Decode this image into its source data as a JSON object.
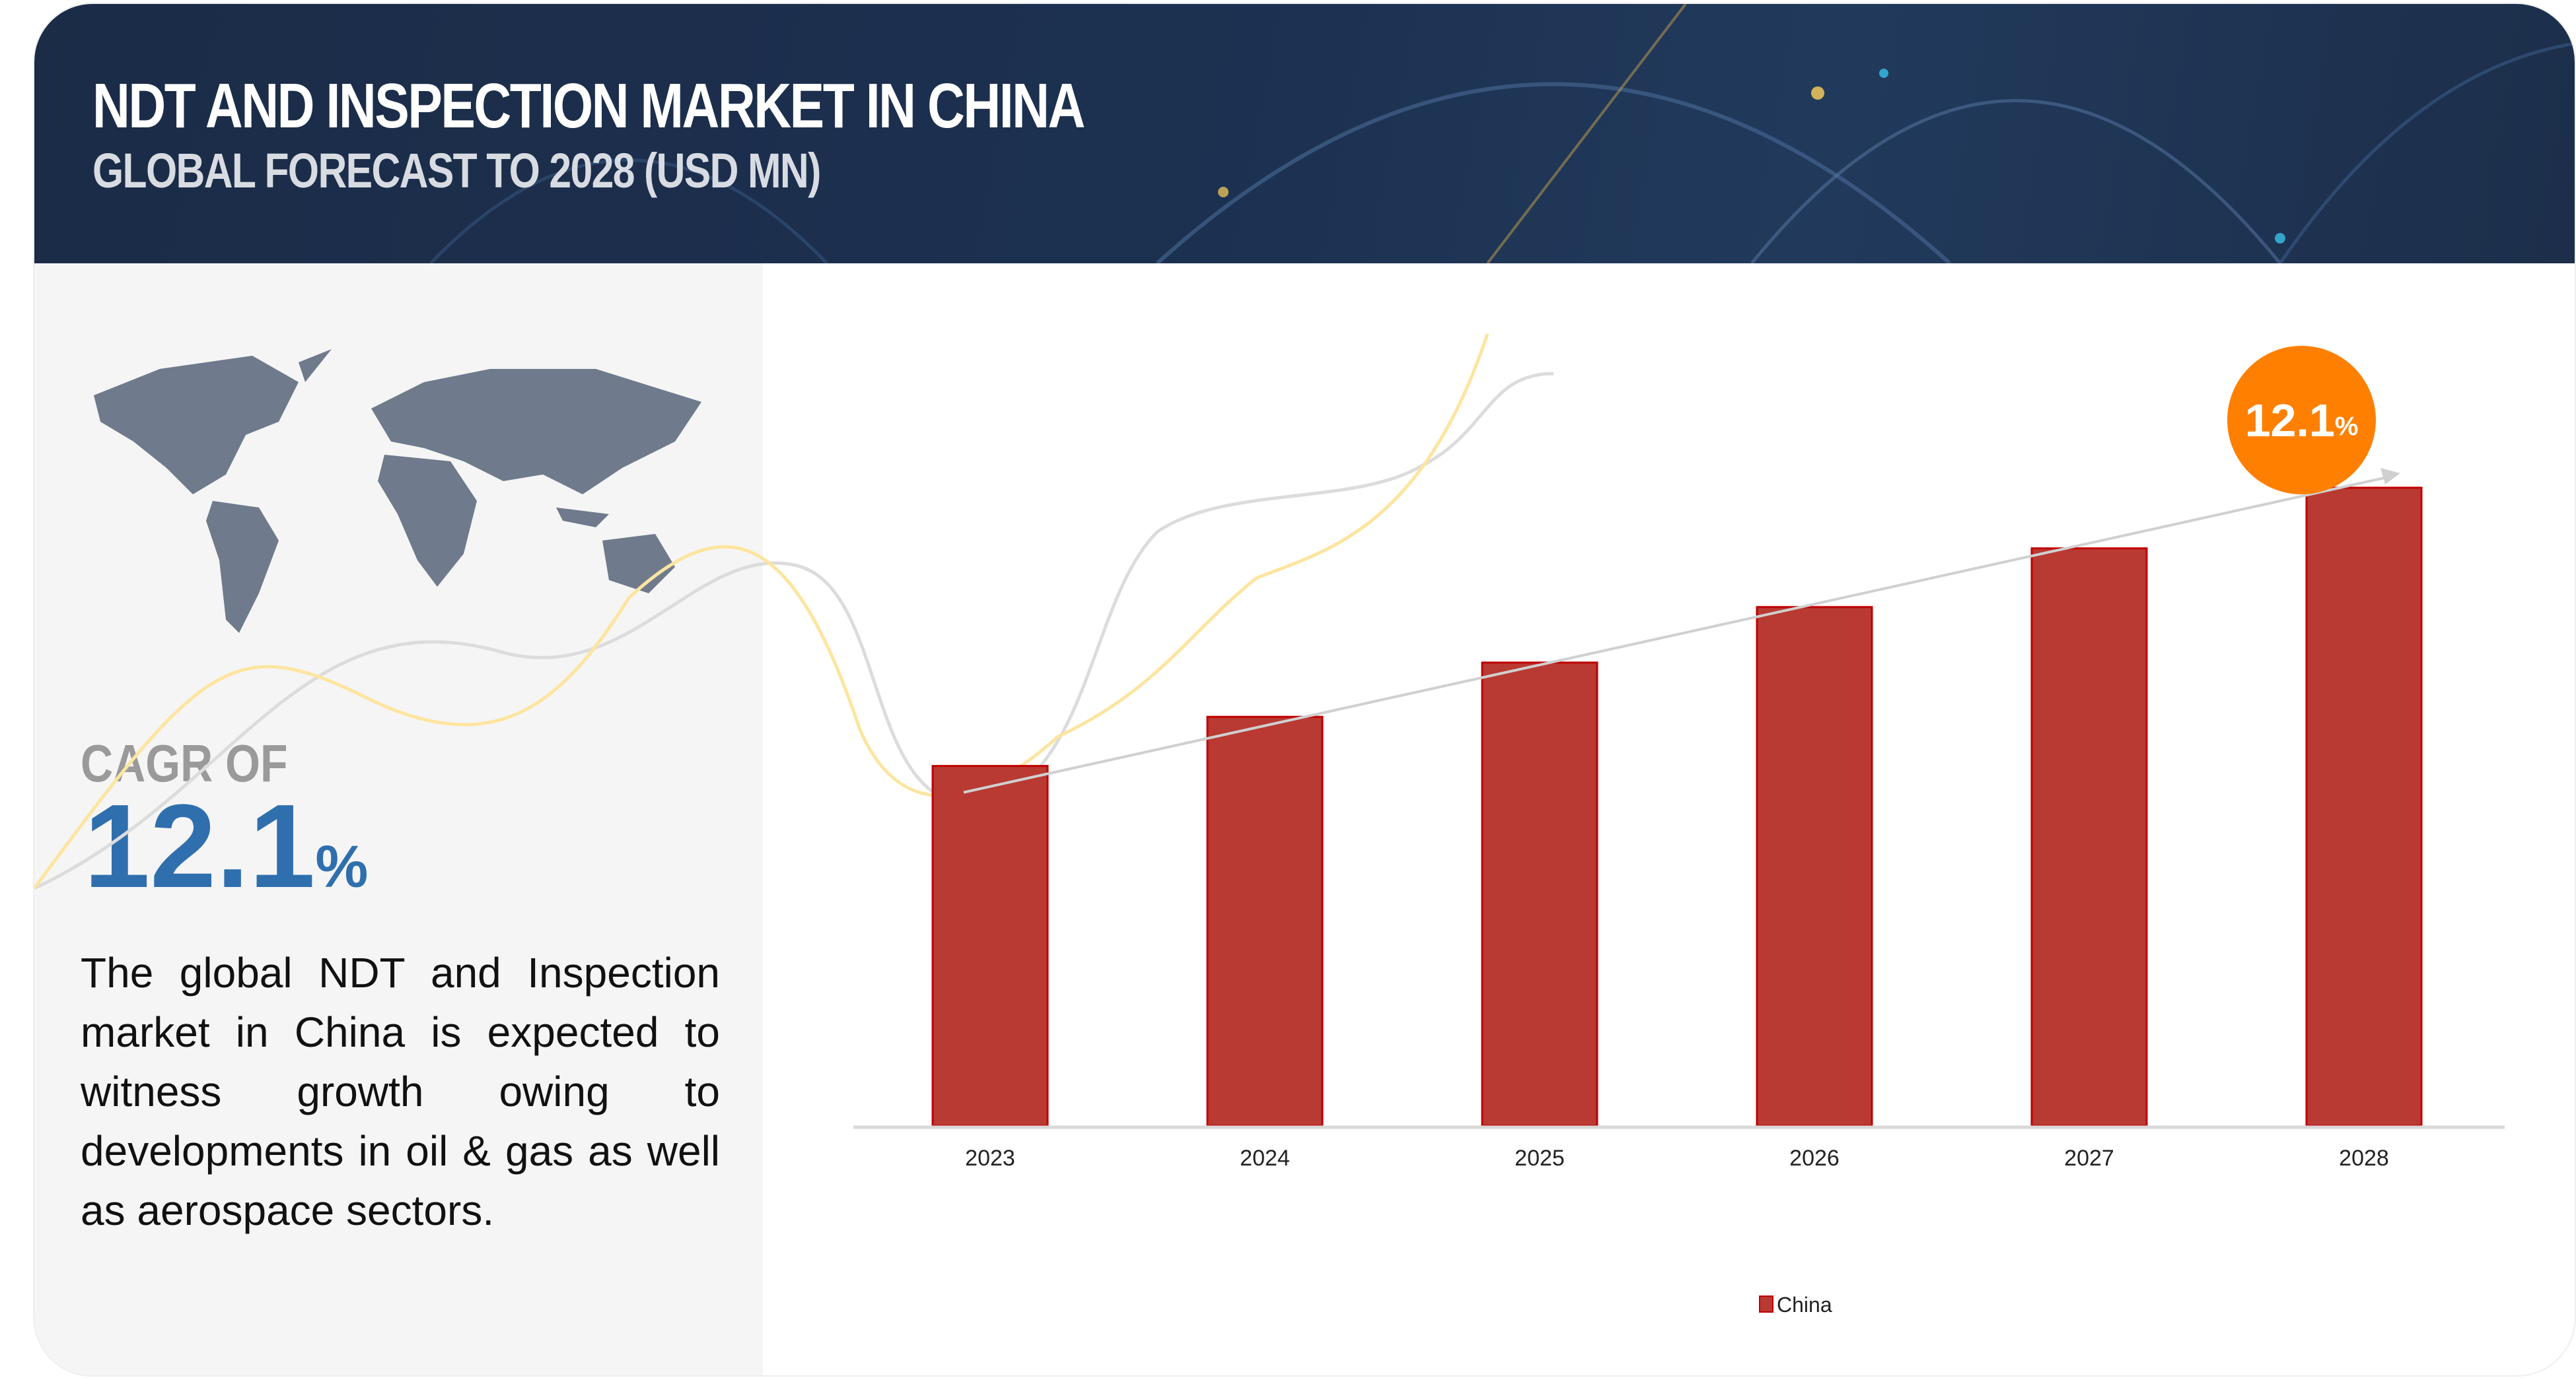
{
  "header": {
    "title": "NDT AND INSPECTION MARKET IN CHINA",
    "subtitle": "GLOBAL FORECAST TO 2028 (USD MN)"
  },
  "left_panel": {
    "cagr_label": "CAGR OF",
    "cagr_value": "12.1",
    "cagr_unit": "%",
    "description": "The global NDT and Inspection market in China is expected to witness growth owing to developments in oil & gas as well as aerospace sectors.",
    "map_icon": "world-map"
  },
  "chart_data": {
    "type": "bar",
    "title": "",
    "xlabel": "",
    "ylabel": "",
    "categories": [
      "2023",
      "2024",
      "2025",
      "2026",
      "2027",
      "2028"
    ],
    "series": [
      {
        "name": "China",
        "values": [
          56.4,
          64.1,
          72.6,
          81.3,
          90.5,
          100
        ],
        "color": "#b83a33"
      }
    ],
    "value_note_unit": "relative (2028 = 100), unlabeled",
    "ylim": [
      0,
      100
    ],
    "grid": false,
    "legend": "bottom",
    "trend_arrow": true,
    "cagr_badge": {
      "value": "12.1",
      "unit": "%",
      "color": "#ff8000"
    }
  },
  "colors": {
    "header_bg": "#1c3050",
    "accent_blue": "#2f6fae",
    "bar": "#b83a33",
    "bar_border": "#c00000",
    "badge": "#ff8000"
  }
}
